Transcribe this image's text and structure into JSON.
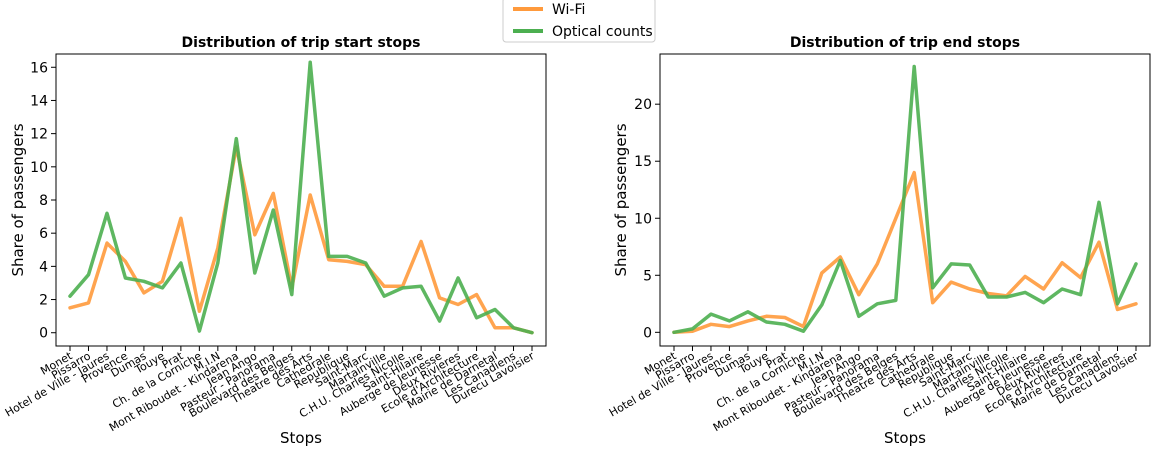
{
  "legend": {
    "placement": "top-center",
    "entries": [
      {
        "name": "Wi-Fi",
        "color": "#ff9a3c"
      },
      {
        "name": "Optical counts",
        "color": "#4caf50"
      }
    ]
  },
  "chart_data": [
    {
      "type": "line",
      "title": "Distribution of trip start stops",
      "xlabel": "Stops",
      "ylabel": "Share of passengers",
      "ylim": [
        -0.8,
        16.8
      ],
      "yticks": [
        0,
        2,
        4,
        6,
        8,
        10,
        12,
        14,
        16
      ],
      "categories": [
        "Monet",
        "Pissarro",
        "Hotel de Ville - Jaures",
        "Provence",
        "Dumas",
        "Touye",
        "Prat",
        "Ch. de la Corniche",
        "M.I.N",
        "Mont Riboudet - Kindarena",
        "Jean Ango",
        "Pasteur - Panorama",
        "Boulevard des Belges",
        "Theatre des Arts",
        "Cathedrale",
        "Republique",
        "Saint-Marc",
        "Martainville",
        "C.H.U. Charles Nicolle",
        "Saint-Hilaire",
        "Auberge de Jeunesse",
        "Deux Rivieres",
        "Ecole d'Architecture",
        "Mairie de Darnetal",
        "Les Canadiens",
        "Durecu Lavoisier"
      ],
      "series": [
        {
          "name": "Wi-Fi",
          "color": "#ff9a3c",
          "values": [
            1.5,
            1.8,
            5.4,
            4.3,
            2.4,
            3.1,
            6.9,
            1.3,
            5.1,
            11.2,
            5.9,
            8.4,
            2.7,
            8.3,
            4.4,
            4.3,
            4.1,
            2.8,
            2.8,
            5.5,
            2.1,
            1.7,
            2.3,
            0.3,
            0.3,
            0.0
          ]
        },
        {
          "name": "Optical counts",
          "color": "#4caf50",
          "values": [
            2.2,
            3.5,
            7.2,
            3.3,
            3.1,
            2.7,
            4.2,
            0.1,
            4.2,
            11.7,
            3.6,
            7.4,
            2.3,
            16.3,
            4.6,
            4.6,
            4.2,
            2.2,
            2.7,
            2.8,
            0.7,
            3.3,
            0.9,
            1.4,
            0.3,
            0.0
          ]
        }
      ]
    },
    {
      "type": "line",
      "title": "Distribution of trip end stops",
      "xlabel": "Stops",
      "ylabel": "Share of passengers",
      "ylim": [
        -1.2,
        24.4
      ],
      "yticks": [
        0,
        5,
        10,
        15,
        20
      ],
      "categories": [
        "Monet",
        "Pissarro",
        "Hotel de Ville - Jaures",
        "Provence",
        "Dumas",
        "Touye",
        "Prat",
        "Ch. de la Corniche",
        "M.I.N",
        "Mont Riboudet - Kindarena",
        "Jean Ango",
        "Pasteur - Panorama",
        "Boulevard des Belges",
        "Theatre des Arts",
        "Cathedrale",
        "Republique",
        "Saint-Marc",
        "Martainville",
        "C.H.U. Charles Nicolle",
        "Saint-Hilaire",
        "Auberge de Jeunesse",
        "Deux Rivieres",
        "Ecole d'Architecture",
        "Mairie de Darnetal",
        "Les Canadiens",
        "Durecu Lavoisier"
      ],
      "series": [
        {
          "name": "Wi-Fi",
          "color": "#ff9a3c",
          "values": [
            0.0,
            0.1,
            0.7,
            0.5,
            1.0,
            1.4,
            1.3,
            0.5,
            5.2,
            6.6,
            3.3,
            6.0,
            10.0,
            14.0,
            2.6,
            4.4,
            3.8,
            3.4,
            3.2,
            4.9,
            3.8,
            6.1,
            4.8,
            7.9,
            2.0,
            2.5
          ]
        },
        {
          "name": "Optical counts",
          "color": "#4caf50",
          "values": [
            0.0,
            0.3,
            1.6,
            1.0,
            1.8,
            0.9,
            0.7,
            0.1,
            2.4,
            6.3,
            1.4,
            2.5,
            2.8,
            23.3,
            3.9,
            6.0,
            5.9,
            3.1,
            3.1,
            3.5,
            2.6,
            3.8,
            3.3,
            11.4,
            2.5,
            6.0
          ]
        }
      ]
    }
  ]
}
